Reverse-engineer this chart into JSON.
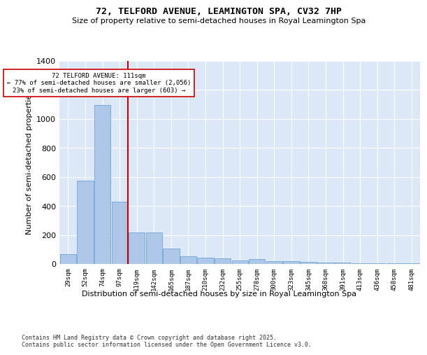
{
  "title_line1": "72, TELFORD AVENUE, LEAMINGTON SPA, CV32 7HP",
  "title_line2": "Size of property relative to semi-detached houses in Royal Leamington Spa",
  "xlabel": "Distribution of semi-detached houses by size in Royal Leamington Spa",
  "ylabel": "Number of semi-detached properties",
  "footnote": "Contains HM Land Registry data © Crown copyright and database right 2025.\nContains public sector information licensed under the Open Government Licence v3.0.",
  "categories": [
    "29sqm",
    "52sqm",
    "74sqm",
    "97sqm",
    "119sqm",
    "142sqm",
    "165sqm",
    "187sqm",
    "210sqm",
    "232sqm",
    "255sqm",
    "278sqm",
    "300sqm",
    "323sqm",
    "345sqm",
    "368sqm",
    "391sqm",
    "413sqm",
    "436sqm",
    "458sqm",
    "481sqm"
  ],
  "values": [
    70,
    575,
    1095,
    430,
    215,
    215,
    107,
    55,
    42,
    40,
    25,
    33,
    20,
    20,
    15,
    10,
    8,
    5,
    4,
    4,
    3
  ],
  "bar_color": "#aec6e8",
  "bar_edge_color": "#5a9fd4",
  "background_color": "#dce8f7",
  "grid_color": "#ffffff",
  "vline_color": "#cc0000",
  "annotation_title": "72 TELFORD AVENUE: 111sqm",
  "annotation_line1": "← 77% of semi-detached houses are smaller (2,056)",
  "annotation_line2": "23% of semi-detached houses are larger (603) →",
  "annotation_box_color": "#ffffff",
  "annotation_box_edge": "#cc0000",
  "ylim": [
    0,
    1400
  ],
  "yticks": [
    0,
    200,
    400,
    600,
    800,
    1000,
    1200,
    1400
  ]
}
